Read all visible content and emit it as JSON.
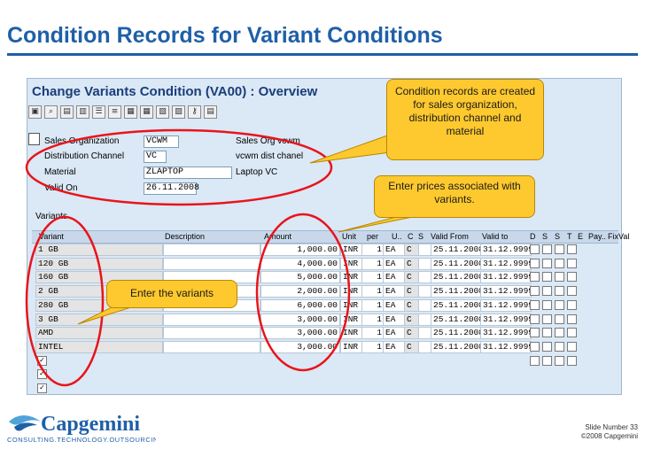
{
  "slide": {
    "title": "Condition Records for Variant Conditions",
    "slide_number": "Slide Number 33",
    "copyright": "©2008 Capgemini"
  },
  "logo": {
    "name": "Capgemini",
    "tagline": "CONSULTING.TECHNOLOGY.OUTSOURCING",
    "color": "#1f5fa8"
  },
  "sap_window": {
    "title": "Change Variants Condition (VA00) : Overview",
    "toolbar_icons": [
      "save-icon",
      "find-icon",
      "doc-icon",
      "doc-icon",
      "list-icon",
      "list-icon",
      "grid-icon",
      "grid-icon",
      "grid-icon",
      "grid-icon",
      "key-icon",
      "doc-icon"
    ]
  },
  "header_fields": [
    {
      "label": "Sales Organization",
      "value": "VCWM",
      "desc": "Sales Org vcwm"
    },
    {
      "label": "Distribution Channel",
      "value": "VC",
      "desc": "vcwm dist chanel"
    },
    {
      "label": "Material",
      "value": "ZLAPTOP",
      "desc": "Laptop VC"
    },
    {
      "label": "Valid On",
      "value": "26.11.2008",
      "desc": ""
    }
  ],
  "grid": {
    "caption": "Variants",
    "columns": [
      "Variant",
      "Description",
      "Amount",
      "Unit",
      "per",
      "U..",
      "C",
      "S",
      "Valid From",
      "Valid to",
      "D",
      "S",
      "S",
      "T",
      "E",
      "Pay..",
      "FixVal"
    ],
    "rows": [
      {
        "variant": "1 GB",
        "amount": "1,000.00",
        "unit": "INR",
        "per": "1",
        "uom": "EA",
        "c": "C",
        "from": "25.11.2008",
        "to": "31.12.9999"
      },
      {
        "variant": "120 GB",
        "amount": "4,000.00",
        "unit": "INR",
        "per": "1",
        "uom": "EA",
        "c": "C",
        "from": "25.11.2008",
        "to": "31.12.9999"
      },
      {
        "variant": "160 GB",
        "amount": "5,000.00",
        "unit": "INR",
        "per": "1",
        "uom": "EA",
        "c": "C",
        "from": "25.11.2008",
        "to": "31.12.9999"
      },
      {
        "variant": "2 GB",
        "amount": "2,000.00",
        "unit": "INR",
        "per": "1",
        "uom": "EA",
        "c": "C",
        "from": "25.11.2008",
        "to": "31.12.9999"
      },
      {
        "variant": "280 GB",
        "amount": "6,000.00",
        "unit": "INR",
        "per": "1",
        "uom": "EA",
        "c": "C",
        "from": "25.11.2008",
        "to": "31.12.9999"
      },
      {
        "variant": "3 GB",
        "amount": "3,000.00",
        "unit": "INR",
        "per": "1",
        "uom": "EA",
        "c": "C",
        "from": "25.11.2008",
        "to": "31.12.9999"
      },
      {
        "variant": "AMD",
        "amount": "3,000.00",
        "unit": "INR",
        "per": "1",
        "uom": "EA",
        "c": "C",
        "from": "25.11.2008",
        "to": "31.12.9999"
      },
      {
        "variant": "INTEL",
        "amount": "3,000.00",
        "unit": "INR",
        "per": "1",
        "uom": "EA",
        "c": "C",
        "from": "25.11.2008",
        "to": "31.12.9999"
      }
    ]
  },
  "callouts": {
    "condition_records": "Condition records are created for sales organization, distribution channel and material",
    "enter_prices": "Enter prices associated with variants.",
    "enter_variants": "Enter the variants"
  },
  "colors": {
    "title_blue": "#1f5fa8",
    "callout_yellow": "#fec92e",
    "highlight_red": "#e8141b",
    "sap_bg": "#dbe8f5"
  }
}
